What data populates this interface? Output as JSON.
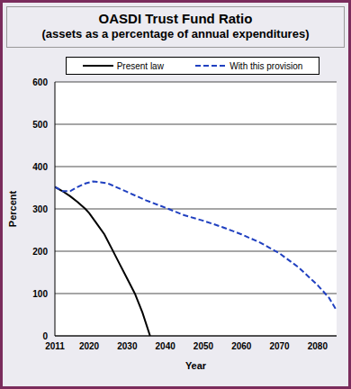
{
  "chart_data": {
    "type": "line",
    "title": "OASDI Trust Fund Ratio",
    "subtitle": "(assets as a percentage of annual expenditures)",
    "x_label": "Year",
    "y_label": "Percent",
    "xlim": [
      2011,
      2085
    ],
    "xticks": [
      2011,
      2020,
      2030,
      2040,
      2050,
      2060,
      2070,
      2080
    ],
    "ylim": [
      0,
      600
    ],
    "yticks": [
      0,
      100,
      200,
      300,
      400,
      500,
      600
    ],
    "grid": true,
    "legend": "top",
    "series": [
      {
        "name": "Present law",
        "color": "#000000",
        "line_style": "solid",
        "x": [
          2011,
          2013,
          2015,
          2017,
          2019,
          2020,
          2022,
          2024,
          2026,
          2028,
          2030,
          2032,
          2034,
          2036
        ],
        "values": [
          352,
          342,
          330,
          316,
          300,
          290,
          265,
          240,
          205,
          170,
          135,
          100,
          55,
          0
        ]
      },
      {
        "name": "With this provision",
        "color": "#2040c0",
        "line_style": "dashed",
        "x": [
          2011,
          2013,
          2015,
          2017,
          2019,
          2021,
          2023,
          2025,
          2027,
          2030,
          2035,
          2040,
          2045,
          2050,
          2055,
          2060,
          2065,
          2070,
          2075,
          2080,
          2083,
          2085
        ],
        "values": [
          352,
          342,
          342,
          352,
          360,
          365,
          363,
          360,
          352,
          340,
          320,
          303,
          285,
          272,
          257,
          240,
          220,
          195,
          162,
          120,
          90,
          60
        ]
      }
    ]
  }
}
